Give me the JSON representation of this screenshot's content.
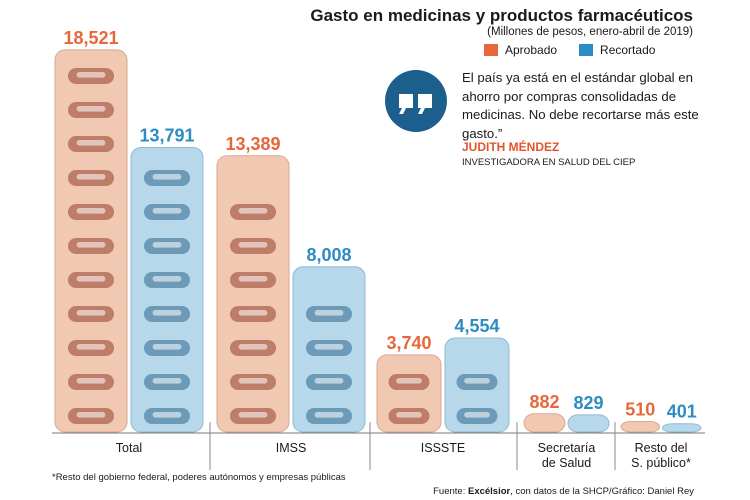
{
  "header": {
    "title": "Gasto en medicinas y productos farmacéuticos",
    "subtitle": "(Millones de pesos, enero-abril de 2019)"
  },
  "legend": {
    "approved_label": "Aprobado",
    "cut_label": "Recortado"
  },
  "quote": {
    "text": "El país ya está en el estándar global en ahorro por compras consolidadas de medicinas. No debe recortarse más este gasto.”",
    "author": "JUDITH MÉNDEZ",
    "role": "INVESTIGADORA EN SALUD DEL CIEP",
    "icon": "quote-marks-icon"
  },
  "colors": {
    "approved": "#e8673a",
    "approved_fill": "#f1c9b3",
    "approved_pill": "#b5705a",
    "cut": "#2d8cc4",
    "cut_fill": "#b7d7ea",
    "cut_pill": "#5f8fae",
    "quote_icon": "#1d5f8c",
    "author": "#e2542a"
  },
  "chart_data": {
    "type": "bar",
    "categories": [
      "Total",
      "IMSS",
      "ISSSTE",
      "Secretaría de Salud",
      "Resto del S. público*"
    ],
    "series": [
      {
        "name": "Aprobado",
        "values": [
          18521,
          13389,
          3740,
          882,
          510
        ],
        "labels": [
          "18,521",
          "13,389",
          "3,740",
          "882",
          "510"
        ]
      },
      {
        "name": "Recortado",
        "values": [
          13791,
          8008,
          4554,
          829,
          401
        ],
        "labels": [
          "13,791",
          "8,008",
          "4,554",
          "829",
          "401"
        ]
      }
    ],
    "ylim": [
      0,
      19000
    ]
  },
  "footer": {
    "footnote": "*Resto del gobierno federal, poderes autónomos y empresas públicas",
    "source_prefix": "Fuente: ",
    "source_brand": "Excélsior",
    "source_suffix": ", con datos de la SHCP/Gráfico: Daniel Rey"
  }
}
